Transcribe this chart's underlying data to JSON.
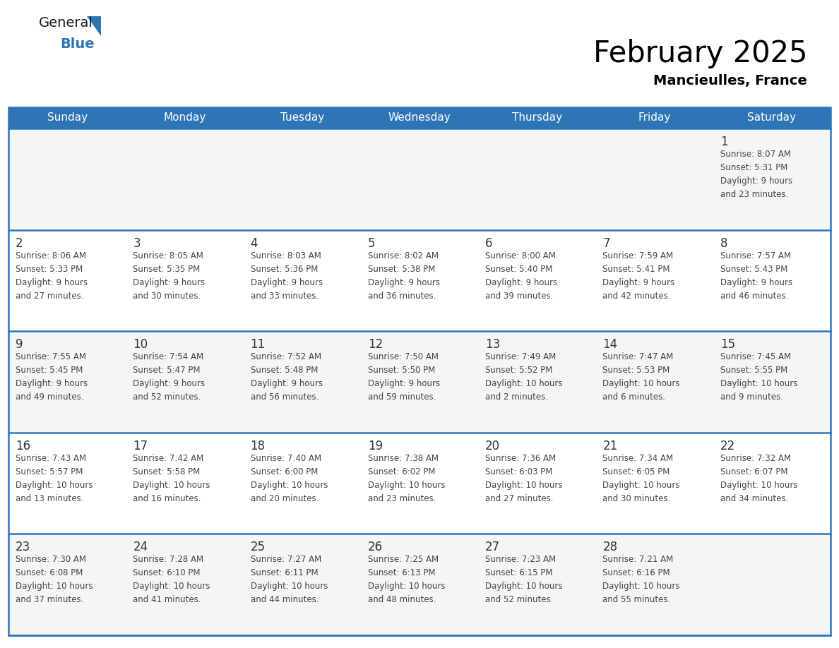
{
  "title": "February 2025",
  "subtitle": "Mancieulles, France",
  "header_bg": "#2e75b6",
  "header_text": "#ffffff",
  "day_names": [
    "Sunday",
    "Monday",
    "Tuesday",
    "Wednesday",
    "Thursday",
    "Friday",
    "Saturday"
  ],
  "cell_bg": "#f5f5f5",
  "cell_bg_white": "#ffffff",
  "divider_color": "#2e75b6",
  "date_color": "#333333",
  "info_color": "#444444",
  "logo_general_color": "#1a1a1a",
  "logo_blue_color": "#2e75b6",
  "weeks": [
    [
      {
        "day": null,
        "info": null
      },
      {
        "day": null,
        "info": null
      },
      {
        "day": null,
        "info": null
      },
      {
        "day": null,
        "info": null
      },
      {
        "day": null,
        "info": null
      },
      {
        "day": null,
        "info": null
      },
      {
        "day": 1,
        "info": "Sunrise: 8:07 AM\nSunset: 5:31 PM\nDaylight: 9 hours\nand 23 minutes."
      }
    ],
    [
      {
        "day": 2,
        "info": "Sunrise: 8:06 AM\nSunset: 5:33 PM\nDaylight: 9 hours\nand 27 minutes."
      },
      {
        "day": 3,
        "info": "Sunrise: 8:05 AM\nSunset: 5:35 PM\nDaylight: 9 hours\nand 30 minutes."
      },
      {
        "day": 4,
        "info": "Sunrise: 8:03 AM\nSunset: 5:36 PM\nDaylight: 9 hours\nand 33 minutes."
      },
      {
        "day": 5,
        "info": "Sunrise: 8:02 AM\nSunset: 5:38 PM\nDaylight: 9 hours\nand 36 minutes."
      },
      {
        "day": 6,
        "info": "Sunrise: 8:00 AM\nSunset: 5:40 PM\nDaylight: 9 hours\nand 39 minutes."
      },
      {
        "day": 7,
        "info": "Sunrise: 7:59 AM\nSunset: 5:41 PM\nDaylight: 9 hours\nand 42 minutes."
      },
      {
        "day": 8,
        "info": "Sunrise: 7:57 AM\nSunset: 5:43 PM\nDaylight: 9 hours\nand 46 minutes."
      }
    ],
    [
      {
        "day": 9,
        "info": "Sunrise: 7:55 AM\nSunset: 5:45 PM\nDaylight: 9 hours\nand 49 minutes."
      },
      {
        "day": 10,
        "info": "Sunrise: 7:54 AM\nSunset: 5:47 PM\nDaylight: 9 hours\nand 52 minutes."
      },
      {
        "day": 11,
        "info": "Sunrise: 7:52 AM\nSunset: 5:48 PM\nDaylight: 9 hours\nand 56 minutes."
      },
      {
        "day": 12,
        "info": "Sunrise: 7:50 AM\nSunset: 5:50 PM\nDaylight: 9 hours\nand 59 minutes."
      },
      {
        "day": 13,
        "info": "Sunrise: 7:49 AM\nSunset: 5:52 PM\nDaylight: 10 hours\nand 2 minutes."
      },
      {
        "day": 14,
        "info": "Sunrise: 7:47 AM\nSunset: 5:53 PM\nDaylight: 10 hours\nand 6 minutes."
      },
      {
        "day": 15,
        "info": "Sunrise: 7:45 AM\nSunset: 5:55 PM\nDaylight: 10 hours\nand 9 minutes."
      }
    ],
    [
      {
        "day": 16,
        "info": "Sunrise: 7:43 AM\nSunset: 5:57 PM\nDaylight: 10 hours\nand 13 minutes."
      },
      {
        "day": 17,
        "info": "Sunrise: 7:42 AM\nSunset: 5:58 PM\nDaylight: 10 hours\nand 16 minutes."
      },
      {
        "day": 18,
        "info": "Sunrise: 7:40 AM\nSunset: 6:00 PM\nDaylight: 10 hours\nand 20 minutes."
      },
      {
        "day": 19,
        "info": "Sunrise: 7:38 AM\nSunset: 6:02 PM\nDaylight: 10 hours\nand 23 minutes."
      },
      {
        "day": 20,
        "info": "Sunrise: 7:36 AM\nSunset: 6:03 PM\nDaylight: 10 hours\nand 27 minutes."
      },
      {
        "day": 21,
        "info": "Sunrise: 7:34 AM\nSunset: 6:05 PM\nDaylight: 10 hours\nand 30 minutes."
      },
      {
        "day": 22,
        "info": "Sunrise: 7:32 AM\nSunset: 6:07 PM\nDaylight: 10 hours\nand 34 minutes."
      }
    ],
    [
      {
        "day": 23,
        "info": "Sunrise: 7:30 AM\nSunset: 6:08 PM\nDaylight: 10 hours\nand 37 minutes."
      },
      {
        "day": 24,
        "info": "Sunrise: 7:28 AM\nSunset: 6:10 PM\nDaylight: 10 hours\nand 41 minutes."
      },
      {
        "day": 25,
        "info": "Sunrise: 7:27 AM\nSunset: 6:11 PM\nDaylight: 10 hours\nand 44 minutes."
      },
      {
        "day": 26,
        "info": "Sunrise: 7:25 AM\nSunset: 6:13 PM\nDaylight: 10 hours\nand 48 minutes."
      },
      {
        "day": 27,
        "info": "Sunrise: 7:23 AM\nSunset: 6:15 PM\nDaylight: 10 hours\nand 52 minutes."
      },
      {
        "day": 28,
        "info": "Sunrise: 7:21 AM\nSunset: 6:16 PM\nDaylight: 10 hours\nand 55 minutes."
      },
      {
        "day": null,
        "info": null
      }
    ]
  ]
}
